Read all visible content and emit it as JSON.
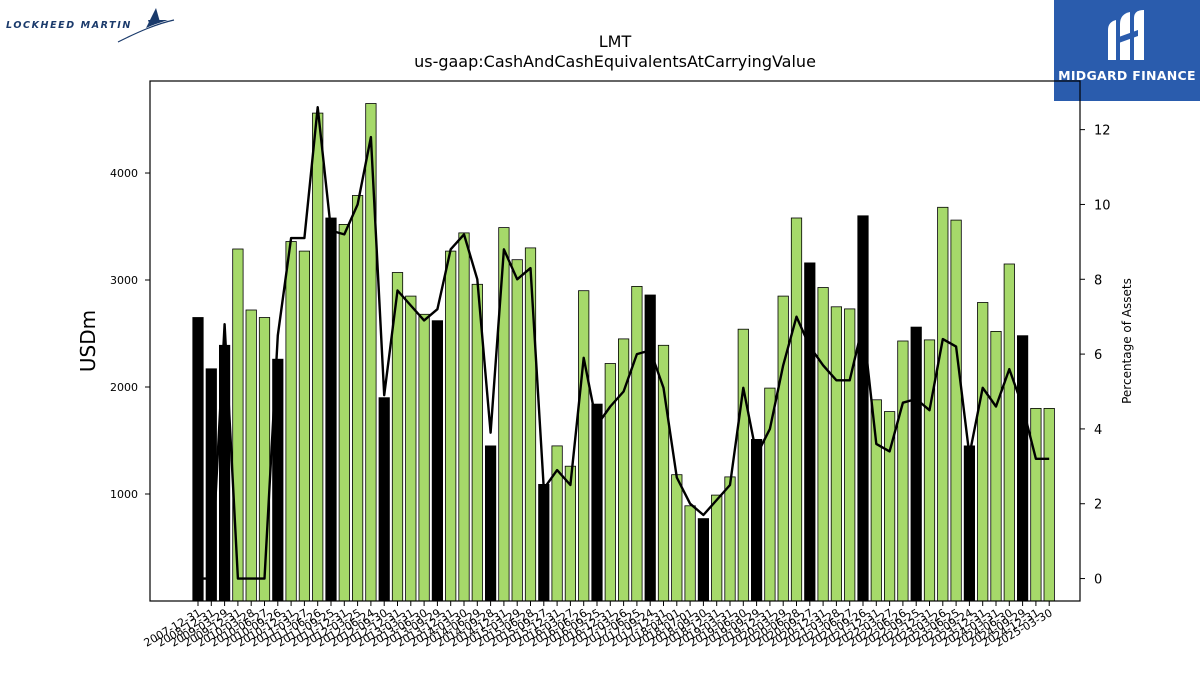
{
  "logos": {
    "left_brand": "LOCKHEED MARTIN",
    "right_brand": "MIDGARD FINANCE",
    "right_brand_bg": "#2a5cad"
  },
  "chart_data": {
    "type": "bar",
    "title": "LMT",
    "subtitle": "us-gaap:CashAndCashEquivalentsAtCarryingValue",
    "ylabel": "USDm",
    "y2label": "Percentage of Assets",
    "ylim": [
      0,
      4860
    ],
    "y2lim": [
      -0.6,
      13.3
    ],
    "yticks": [
      1000,
      2000,
      3000,
      4000
    ],
    "y2ticks": [
      0,
      2,
      4,
      6,
      8,
      10,
      12
    ],
    "colors": {
      "annual": "#000000",
      "quarterly": "#a6d96a",
      "line": "#000000"
    },
    "categories": [
      "2007-12-31",
      "2008-12-31",
      "2009-03-29",
      "2009-12-31",
      "2010-03-28",
      "2010-06-27",
      "2010-09-26",
      "2010-12-31",
      "2011-03-27",
      "2011-06-26",
      "2011-09-25",
      "2011-12-31",
      "2012-03-25",
      "2012-06-24",
      "2012-09-30",
      "2012-12-31",
      "2013-03-31",
      "2013-06-30",
      "2013-09-29",
      "2013-12-31",
      "2014-03-30",
      "2014-06-29",
      "2014-09-28",
      "2014-12-31",
      "2015-03-29",
      "2015-06-28",
      "2015-09-27",
      "2015-12-31",
      "2016-03-27",
      "2016-06-26",
      "2016-09-25",
      "2016-12-31",
      "2017-03-26",
      "2017-06-25",
      "2017-09-24",
      "2017-12-31",
      "2018-04-01",
      "2018-07-01",
      "2018-09-30",
      "2018-12-31",
      "2019-03-31",
      "2019-06-30",
      "2019-09-29",
      "2019-12-31",
      "2020-03-29",
      "2020-06-28",
      "2020-09-27",
      "2020-12-31",
      "2021-03-28",
      "2021-06-27",
      "2021-09-26",
      "2021-12-31",
      "2022-03-27",
      "2022-06-26",
      "2022-09-25",
      "2022-12-31",
      "2023-03-26",
      "2023-06-25",
      "2023-09-24",
      "2023-12-31",
      "2024-03-31",
      "2024-06-30",
      "2024-09-29",
      "2024-12-31",
      "2025-03-30"
    ],
    "xticklabels_visible": [
      "2007-12-31",
      "2008-12-31",
      "2009-03-29",
      "2009-12-31",
      "2010-03-28",
      "2010-06-27",
      "2010-09-26",
      "2010-12-31",
      "2011-03-27",
      "2011-06-26",
      "2011-09-25",
      "2011-12-31",
      "2012-03-25",
      "2012-06-24",
      "2012-09-30",
      "2012-12-31",
      "2013-03-31",
      "2013-06-30",
      "2013-09-29",
      "2013-12-31",
      "2014-03-30",
      "2014-06-29",
      "2014-09-28",
      "2014-12-31",
      "2015-03-29",
      "2015-06-28",
      "2015-09-27",
      "2015-12-31",
      "2016-03-27",
      "2016-06-26",
      "2016-09-25",
      "2016-12-31",
      "2017-03-26",
      "2017-06-25",
      "2017-09-24",
      "2017-12-31",
      "2018-04-01",
      "2018-07-01",
      "2018-09-30",
      "2018-12-31",
      "2019-03-31",
      "2019-06-30",
      "2019-09-29",
      "2019-12-31",
      "2020-03-29",
      "2020-06-28",
      "2020-09-27",
      "2020-12-31",
      "2021-03-28",
      "2021-06-27",
      "2021-09-26",
      "2021-12-31",
      "2022-03-27",
      "2022-06-26",
      "2022-09-25",
      "2022-12-31",
      "2023-03-26",
      "2023-06-25",
      "2023-09-24",
      "2023-12-31",
      "2024-03-31",
      "2024-06-30",
      "2024-09-29",
      "2024-12-31",
      "2025-03-30"
    ],
    "series": [
      {
        "kind": "bar",
        "values": [
          2650,
          2170,
          2390,
          3290,
          2720,
          2650,
          2260,
          3360,
          3270,
          4560,
          3580,
          3520,
          3790,
          4650,
          1900,
          3070,
          2850,
          2680,
          2620,
          3270,
          3440,
          2960,
          1450,
          3490,
          3190,
          3300,
          1090,
          1450,
          1260,
          2900,
          1840,
          2220,
          2450,
          2940,
          2860,
          2390,
          1180,
          890,
          770,
          990,
          1160,
          2540,
          1510,
          1990,
          2850,
          3580,
          3160,
          2930,
          2750,
          2730,
          3600,
          1880,
          1770,
          2430,
          2560,
          2440,
          3680,
          3560,
          1450,
          2790,
          2520,
          3150,
          2480,
          1800,
          1800
        ],
        "annual": [
          true,
          true,
          true,
          false,
          false,
          false,
          true,
          false,
          false,
          false,
          true,
          false,
          false,
          false,
          true,
          false,
          false,
          false,
          true,
          false,
          false,
          false,
          true,
          false,
          false,
          false,
          true,
          false,
          false,
          false,
          true,
          false,
          false,
          false,
          true,
          false,
          false,
          false,
          true,
          false,
          false,
          false,
          true,
          false,
          false,
          false,
          true,
          false,
          false,
          false,
          true,
          false,
          false,
          false,
          true,
          false,
          false,
          false,
          true,
          false,
          false,
          false,
          true,
          false,
          false
        ]
      },
      {
        "kind": "line",
        "axis": "right",
        "values": [
          0.0,
          0.0,
          6.8,
          0.0,
          0.0,
          0.0,
          6.5,
          9.1,
          9.1,
          12.6,
          9.3,
          9.2,
          10.0,
          11.8,
          4.9,
          7.7,
          7.3,
          6.9,
          7.2,
          8.8,
          9.2,
          8.0,
          3.9,
          8.8,
          8.0,
          8.3,
          2.4,
          2.9,
          2.5,
          5.9,
          4.1,
          4.6,
          5.0,
          6.0,
          6.1,
          5.1,
          2.7,
          2.0,
          1.7,
          2.1,
          2.5,
          5.1,
          3.3,
          4.0,
          5.7,
          7.0,
          6.2,
          5.7,
          5.3,
          5.3,
          6.8,
          3.6,
          3.4,
          4.7,
          4.8,
          4.5,
          6.4,
          6.2,
          3.3,
          5.1,
          4.6,
          5.6,
          4.6,
          3.2,
          3.2
        ]
      }
    ],
    "grid": false,
    "legend": "none"
  }
}
